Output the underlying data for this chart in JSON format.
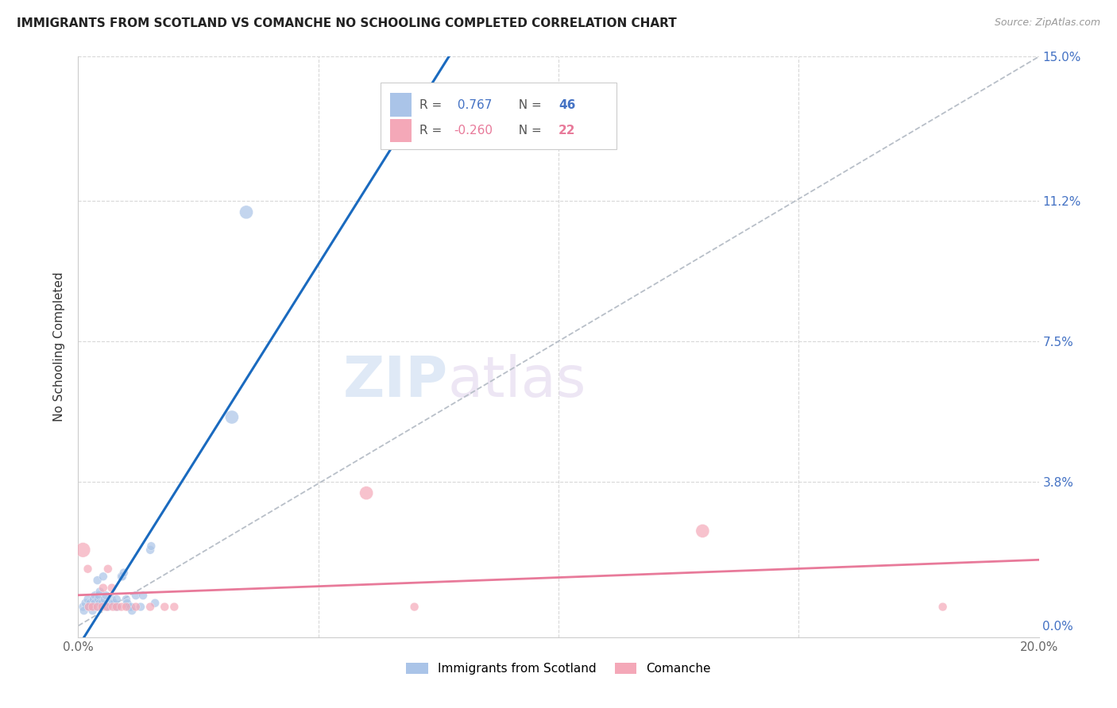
{
  "title": "IMMIGRANTS FROM SCOTLAND VS COMANCHE NO SCHOOLING COMPLETED CORRELATION CHART",
  "source": "Source: ZipAtlas.com",
  "ylabel": "No Schooling Completed",
  "xlim": [
    0.0,
    20.0
  ],
  "ylim": [
    -0.3,
    15.0
  ],
  "xticks": [
    0.0,
    5.0,
    10.0,
    15.0,
    20.0
  ],
  "xticklabels": [
    "0.0%",
    "",
    "",
    "",
    "20.0%"
  ],
  "yticks": [
    0.0,
    3.8,
    7.5,
    11.2,
    15.0
  ],
  "yticklabels_right": [
    "0.0%",
    "3.8%",
    "7.5%",
    "11.2%",
    "15.0%"
  ],
  "scotland_R": 0.767,
  "scotland_N": 46,
  "comanche_R": -0.26,
  "comanche_N": 22,
  "scotland_color": "#aac4e8",
  "comanche_color": "#f4a8b8",
  "scotland_line_color": "#1a6abf",
  "comanche_line_color": "#e87a9a",
  "trendline_dashed_color": "#b8bfc8",
  "watermark_zip": "ZIP",
  "watermark_atlas": "atlas",
  "scotland_points": [
    [
      0.1,
      0.5
    ],
    [
      0.15,
      0.6
    ],
    [
      0.12,
      0.4
    ],
    [
      0.2,
      0.7
    ],
    [
      0.22,
      0.5
    ],
    [
      0.25,
      0.6
    ],
    [
      0.3,
      0.5
    ],
    [
      0.3,
      0.4
    ],
    [
      0.32,
      0.7
    ],
    [
      0.35,
      0.8
    ],
    [
      0.35,
      0.6
    ],
    [
      0.4,
      0.5
    ],
    [
      0.4,
      1.2
    ],
    [
      0.42,
      0.7
    ],
    [
      0.43,
      0.8
    ],
    [
      0.45,
      0.6
    ],
    [
      0.45,
      0.9
    ],
    [
      0.5,
      0.6
    ],
    [
      0.52,
      1.3
    ],
    [
      0.55,
      0.7
    ],
    [
      0.58,
      0.8
    ],
    [
      0.6,
      0.5
    ],
    [
      0.62,
      0.5
    ],
    [
      0.65,
      0.6
    ],
    [
      0.7,
      0.7
    ],
    [
      0.72,
      0.6
    ],
    [
      0.75,
      0.6
    ],
    [
      0.78,
      0.5
    ],
    [
      0.8,
      0.7
    ],
    [
      0.82,
      0.5
    ],
    [
      0.9,
      1.3
    ],
    [
      0.92,
      1.3
    ],
    [
      0.95,
      1.4
    ],
    [
      1.0,
      0.7
    ],
    [
      1.02,
      0.6
    ],
    [
      1.05,
      0.5
    ],
    [
      1.1,
      0.5
    ],
    [
      1.12,
      0.4
    ],
    [
      1.2,
      0.8
    ],
    [
      1.3,
      0.5
    ],
    [
      1.35,
      0.8
    ],
    [
      1.5,
      2.0
    ],
    [
      1.52,
      2.1
    ],
    [
      1.6,
      0.6
    ],
    [
      3.2,
      5.5
    ],
    [
      3.5,
      10.9
    ]
  ],
  "comanche_points": [
    [
      0.1,
      2.0
    ],
    [
      0.2,
      1.5
    ],
    [
      0.22,
      0.5
    ],
    [
      0.3,
      0.5
    ],
    [
      0.4,
      0.5
    ],
    [
      0.5,
      0.5
    ],
    [
      0.52,
      1.0
    ],
    [
      0.6,
      0.5
    ],
    [
      0.62,
      1.5
    ],
    [
      0.7,
      1.0
    ],
    [
      0.72,
      0.5
    ],
    [
      0.8,
      0.5
    ],
    [
      0.9,
      0.5
    ],
    [
      1.0,
      0.5
    ],
    [
      1.2,
      0.5
    ],
    [
      1.5,
      0.5
    ],
    [
      1.8,
      0.5
    ],
    [
      2.0,
      0.5
    ],
    [
      6.0,
      3.5
    ],
    [
      7.0,
      0.5
    ],
    [
      13.0,
      2.5
    ],
    [
      18.0,
      0.5
    ]
  ],
  "scotland_sizes": [
    60,
    60,
    60,
    60,
    60,
    60,
    60,
    60,
    60,
    60,
    60,
    60,
    60,
    60,
    60,
    60,
    60,
    60,
    60,
    60,
    60,
    60,
    60,
    60,
    60,
    60,
    60,
    60,
    60,
    60,
    60,
    60,
    60,
    60,
    60,
    60,
    60,
    60,
    60,
    60,
    60,
    60,
    60,
    60,
    150,
    150
  ],
  "comanche_sizes": [
    180,
    60,
    60,
    60,
    60,
    60,
    60,
    60,
    60,
    60,
    60,
    60,
    60,
    60,
    60,
    60,
    60,
    60,
    150,
    60,
    150,
    60
  ],
  "legend_R1_label": "R = ",
  "legend_R1_val": " 0.767",
  "legend_N1_label": "  N = ",
  "legend_N1_val": "46",
  "legend_R2_label": "R = ",
  "legend_R2_val": "-0.260",
  "legend_N2_label": "  N = ",
  "legend_N2_val": "22"
}
